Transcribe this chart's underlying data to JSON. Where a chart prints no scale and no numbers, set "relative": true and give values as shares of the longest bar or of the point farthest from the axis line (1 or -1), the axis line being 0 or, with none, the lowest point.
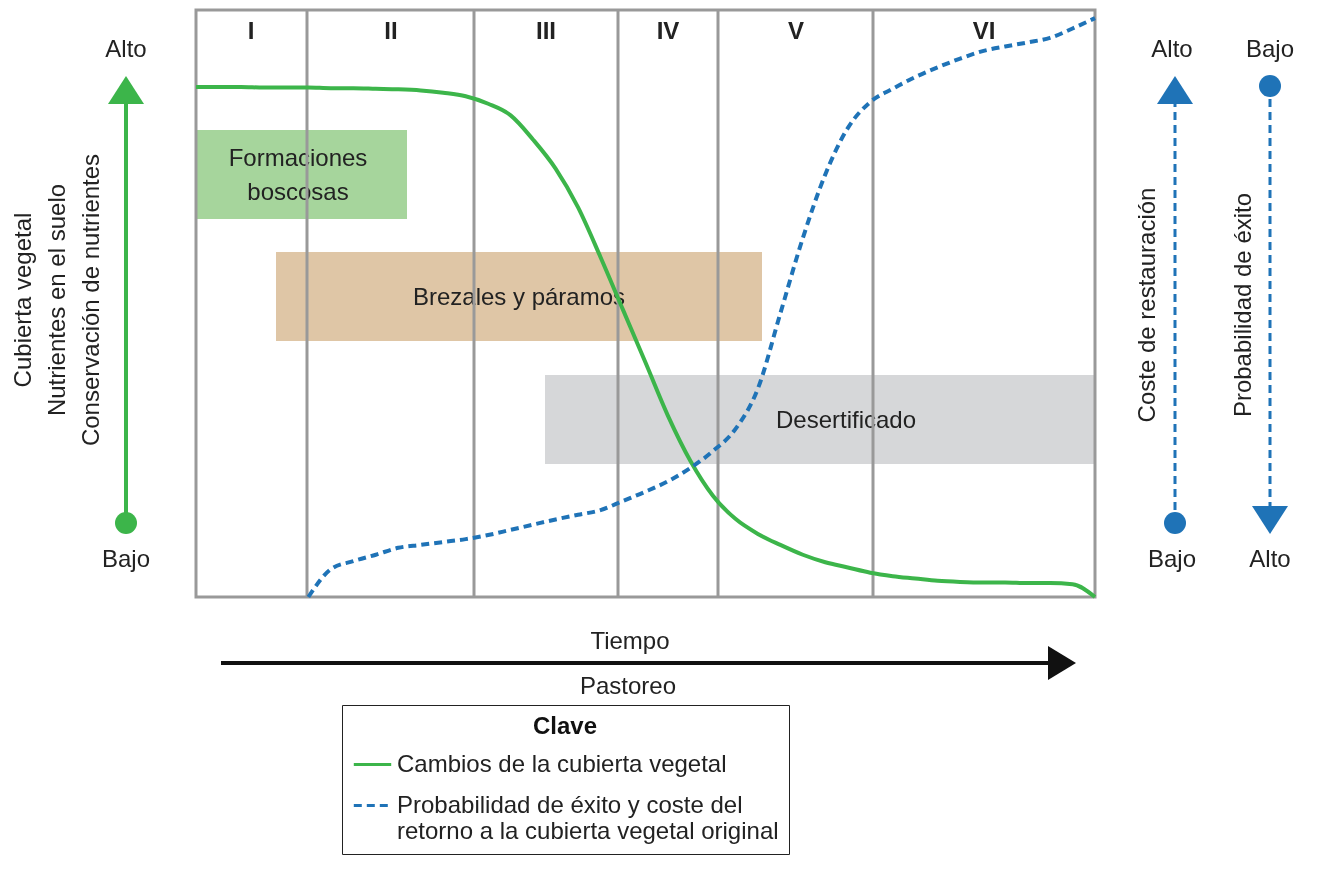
{
  "chart_data": {
    "type": "line",
    "relative": true,
    "xlabel": "Tiempo",
    "ylabel": "Cubierta vegetal\nNutrientes en el suelo\nConservación de nutrientes",
    "y2label": "Coste de restauración",
    "y3label": "Probabilidad de éxito",
    "legend_title": "Clave",
    "legend": "bottom",
    "marker": "none",
    "categories": [
      null,
      null,
      null,
      null,
      null,
      null,
      null,
      null,
      null,
      null,
      null,
      null,
      null,
      null,
      null,
      null,
      null,
      null,
      null,
      null,
      null,
      null,
      null,
      null,
      null,
      null,
      null,
      null,
      null,
      null,
      null,
      null,
      null,
      null,
      null,
      null,
      null,
      null,
      null,
      null,
      null
    ],
    "series": [
      {
        "name": "Cambios de la cubierta vegetal",
        "color": "#3cb54a",
        "line_style": "solid",
        "values": [
          0.881,
          0.881,
          0.881,
          0.88,
          0.88,
          0.88,
          0.879,
          0.879,
          0.878,
          0.877,
          0.875,
          0.871,
          0.865,
          0.852,
          0.832,
          0.79,
          0.74,
          0.673,
          0.587,
          0.496,
          0.405,
          0.313,
          0.235,
          0.175,
          0.135,
          0.109,
          0.09,
          0.073,
          0.06,
          0.051,
          0.042,
          0.036,
          0.032,
          0.028,
          0.026,
          0.025,
          0.025,
          0.024,
          0.024,
          0.022,
          0
        ]
      },
      {
        "name": "Probabilidad de éxito y coste del retorno a la cubierta vegetal original",
        "color": "#1f73b7",
        "line_style": "dashed",
        "values": [
          null,
          null,
          null,
          null,
          null,
          0,
          0.048,
          0.062,
          0.073,
          0.085,
          0.09,
          0.095,
          0.1,
          0.107,
          0.116,
          0.125,
          0.134,
          0.142,
          0.15,
          0.166,
          0.182,
          0.2,
          0.223,
          0.252,
          0.29,
          0.36,
          0.49,
          0.62,
          0.73,
          0.81,
          0.855,
          0.878,
          0.898,
          0.915,
          0.93,
          0.943,
          0.951,
          0.958,
          0.966,
          0.982,
          1
        ]
      }
    ],
    "annotations": [
      "I",
      "II",
      "III",
      "IV",
      "V",
      "VI",
      "Formaciones boscosas",
      "Brezales y páramos",
      "Desertificado",
      "Alto",
      "Bajo",
      "Alto",
      "Bajo",
      "Bajo",
      "Alto",
      "Pastoreo"
    ]
  }
}
